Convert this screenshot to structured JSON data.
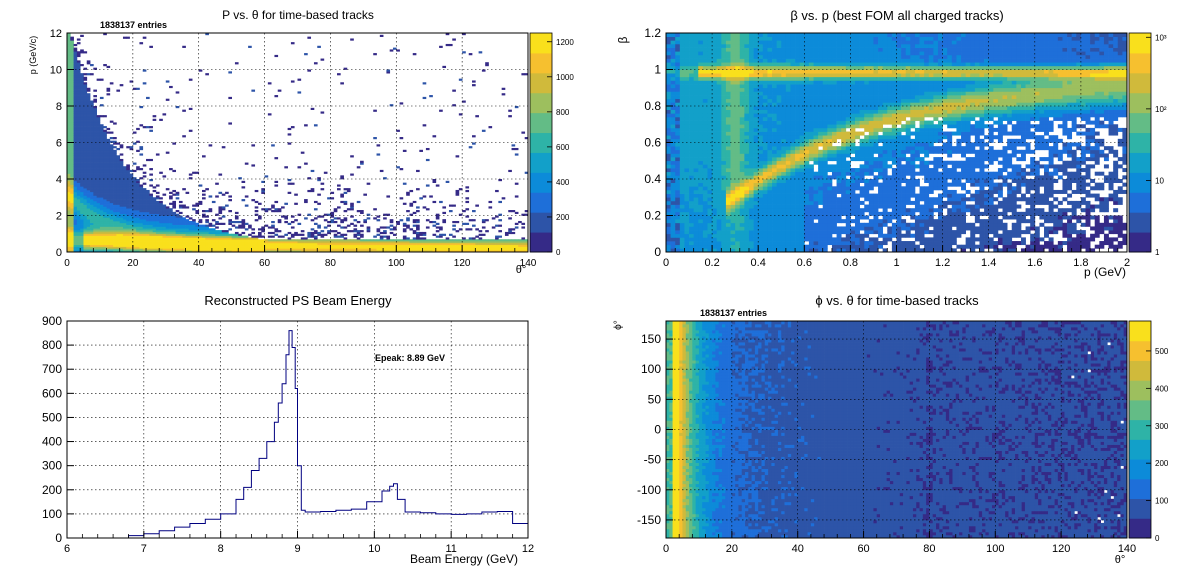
{
  "colors": {
    "palette": [
      "#352a87",
      "#2d54a8",
      "#1e6fd9",
      "#0c8bd9",
      "#12a0c9",
      "#2eb3a7",
      "#63bc86",
      "#9dbf5e",
      "#d0ba3b",
      "#f6c02f",
      "#f9e01c"
    ],
    "hist_line": "#000080",
    "frame": "#000000",
    "grid": "#000000"
  },
  "chart_data": [
    {
      "type": "heatmap",
      "title": "P vs. θ for time-based tracks",
      "entries_label": "1838137 entries",
      "xlabel": "θ°",
      "ylabel": "p (GeV/c)",
      "xlim": [
        0,
        140
      ],
      "ylim": [
        0,
        12
      ],
      "xticks": [
        "0",
        "20",
        "40",
        "60",
        "80",
        "100",
        "120",
        "140"
      ],
      "yticks": [
        "0",
        "2",
        "4",
        "6",
        "8",
        "10",
        "12"
      ],
      "colorbar_ticks": [
        "0",
        "200",
        "400",
        "600",
        "800",
        "1000",
        "1200"
      ],
      "zlim": [
        0,
        1250
      ],
      "log_z": false,
      "grid": true
    },
    {
      "type": "heatmap",
      "title": "β vs. p (best FOM all charged tracks)",
      "xlabel": "p (GeV)",
      "ylabel": "β",
      "xlim": [
        0,
        2
      ],
      "ylim": [
        0,
        1.2
      ],
      "xticks": [
        "0",
        "0.2",
        "0.4",
        "0.6",
        "0.8",
        "1",
        "1.2",
        "1.4",
        "1.6",
        "1.8",
        "2"
      ],
      "yticks": [
        "0",
        "0.2",
        "0.4",
        "0.6",
        "0.8",
        "1",
        "1.2"
      ],
      "colorbar_ticks": [
        "1",
        "10",
        "10²",
        "10³"
      ],
      "zlim": [
        1,
        1500
      ],
      "log_z": true,
      "grid": true
    },
    {
      "type": "line",
      "title": "Reconstructed PS Beam Energy",
      "annotation": "Epeak: 8.89 GeV",
      "xlabel": "Beam Energy (GeV)",
      "ylabel": "",
      "xlim": [
        6,
        12
      ],
      "ylim": [
        0,
        900
      ],
      "xticks": [
        "6",
        "7",
        "8",
        "9",
        "10",
        "11",
        "12"
      ],
      "yticks": [
        "0",
        "100",
        "200",
        "300",
        "400",
        "500",
        "600",
        "700",
        "800",
        "900"
      ],
      "grid": true,
      "x": [
        6.8,
        7.0,
        7.2,
        7.4,
        7.6,
        7.8,
        8.0,
        8.2,
        8.3,
        8.4,
        8.5,
        8.6,
        8.7,
        8.75,
        8.8,
        8.85,
        8.89,
        8.93,
        8.97,
        9.0,
        9.05,
        9.1,
        9.3,
        9.5,
        9.7,
        9.9,
        10.1,
        10.2,
        10.25,
        10.3,
        10.4,
        10.6,
        10.8,
        11.0,
        11.2,
        11.4,
        11.6,
        11.8,
        12.0
      ],
      "y": [
        10,
        18,
        30,
        45,
        60,
        78,
        100,
        160,
        210,
        280,
        330,
        400,
        480,
        560,
        640,
        760,
        860,
        790,
        620,
        300,
        115,
        108,
        110,
        115,
        120,
        150,
        195,
        215,
        225,
        160,
        108,
        105,
        100,
        98,
        100,
        108,
        110,
        60,
        30
      ]
    },
    {
      "type": "heatmap",
      "title": "ϕ vs. θ for time-based tracks",
      "entries_label": "1838137 entries",
      "xlabel": "θ°",
      "ylabel": "ϕ°",
      "xlim": [
        0,
        140
      ],
      "ylim": [
        -180,
        180
      ],
      "xticks": [
        "0",
        "20",
        "40",
        "60",
        "80",
        "100",
        "120",
        "140"
      ],
      "yticks": [
        "-150",
        "-100",
        "-50",
        "0",
        "50",
        "100",
        "150"
      ],
      "colorbar_ticks": [
        "0",
        "100",
        "200",
        "300",
        "400",
        "500"
      ],
      "zlim": [
        0,
        580
      ],
      "log_z": false,
      "grid": true
    }
  ]
}
